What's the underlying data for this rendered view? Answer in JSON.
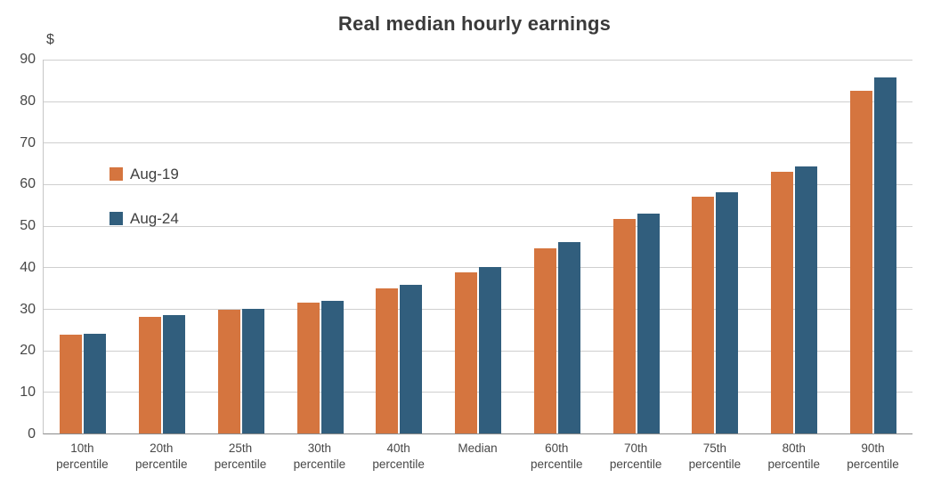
{
  "title": "Real median hourly earnings",
  "y_axis": {
    "unit_label": "$",
    "ticks": [
      90,
      80,
      70,
      60,
      50,
      40,
      30,
      20,
      10,
      0
    ]
  },
  "legend": {
    "position": "inside-top-left",
    "entries": [
      {
        "label": "Aug-19",
        "color": "#d5753f"
      },
      {
        "label": "Aug-24",
        "color": "#315e7d"
      }
    ]
  },
  "chart_data": {
    "type": "bar",
    "title": "Real median hourly earnings",
    "categories": [
      "10th percentile",
      "20th percentile",
      "25th percentile",
      "30th percentile",
      "40th percentile",
      "Median",
      "60th percentile",
      "70th percentile",
      "75th percentile",
      "80th percentile",
      "90th percentile"
    ],
    "category_label_lines": [
      [
        "10th",
        "percentile"
      ],
      [
        "20th",
        "percentile"
      ],
      [
        "25th",
        "percentile"
      ],
      [
        "30th",
        "percentile"
      ],
      [
        "40th",
        "percentile"
      ],
      [
        "Median"
      ],
      [
        "60th",
        "percentile"
      ],
      [
        "70th",
        "percentile"
      ],
      [
        "75th",
        "percentile"
      ],
      [
        "80th",
        "percentile"
      ],
      [
        "90th",
        "percentile"
      ]
    ],
    "series": [
      {
        "name": "Aug-19",
        "color": "#d5753f",
        "values": [
          23.8,
          28.0,
          29.8,
          31.4,
          34.9,
          38.8,
          44.6,
          51.6,
          57.0,
          62.9,
          82.5
        ]
      },
      {
        "name": "Aug-24",
        "color": "#315e7d",
        "values": [
          24.1,
          28.5,
          30.0,
          31.9,
          35.7,
          40.0,
          46.1,
          53.0,
          58.1,
          64.2,
          85.7
        ]
      }
    ],
    "xlabel": "",
    "ylabel": "$",
    "ylim": [
      0,
      90
    ],
    "ytick_step": 10,
    "grid": "horizontal-only",
    "legend_position": "inside-top-left"
  },
  "colors": {
    "background": "#ffffff",
    "gridline": "#cfcfcf",
    "axis_bottom": "#8a8a8a",
    "axis_left": "#c6c6c6",
    "title_text": "#3a3a3a",
    "tick_text": "#474747"
  }
}
